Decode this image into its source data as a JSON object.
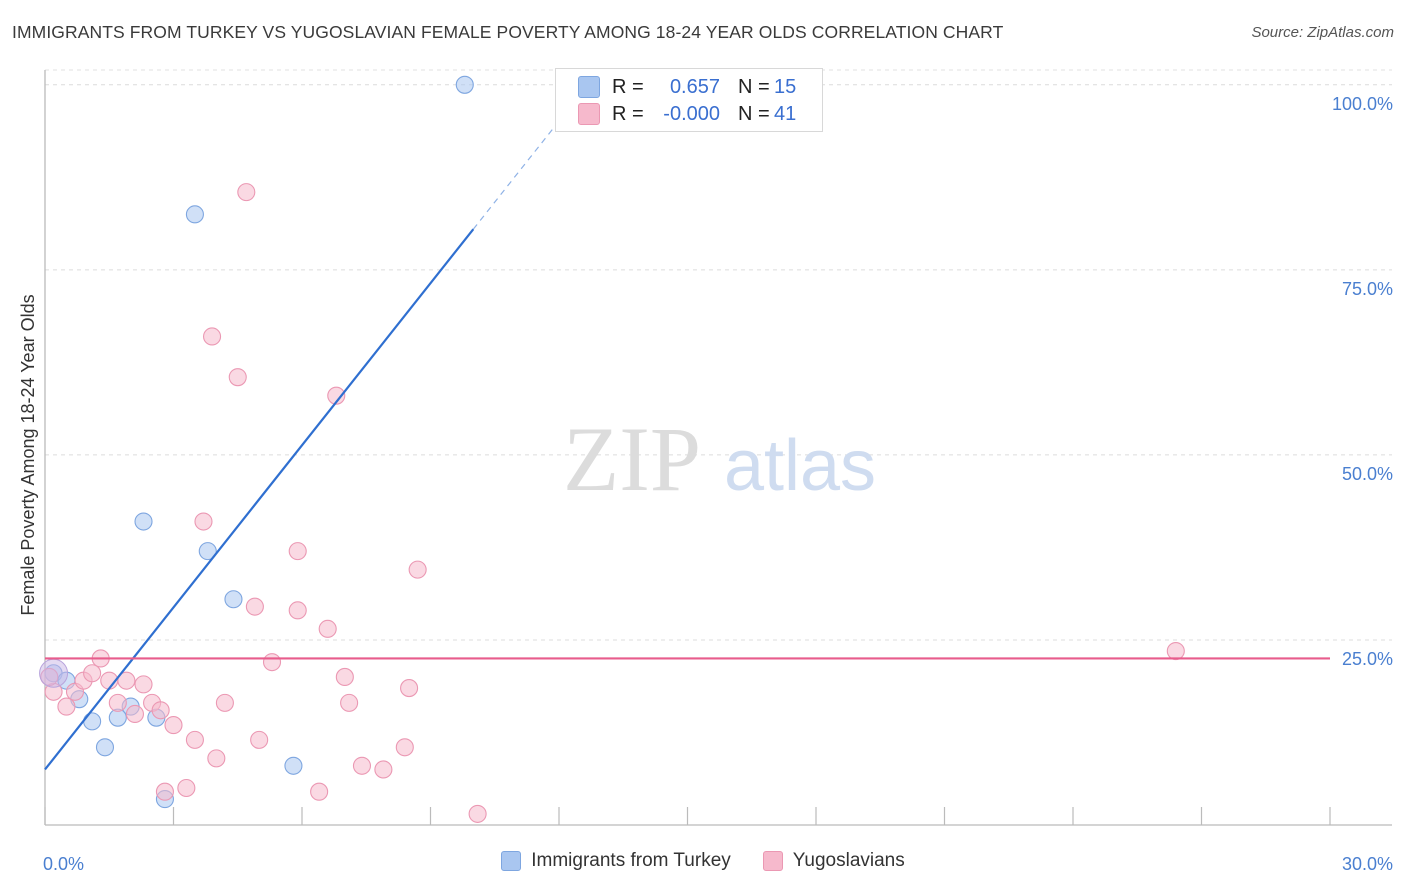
{
  "title": "IMMIGRANTS FROM TURKEY VS YUGOSLAVIAN FEMALE POVERTY AMONG 18-24 YEAR OLDS CORRELATION CHART",
  "source": "Source: ZipAtlas.com",
  "watermark": {
    "zip": "ZIP",
    "atlas": "atlas"
  },
  "legend": {
    "r_label": "R =",
    "n_label": "N =",
    "series1": {
      "r": "0.657",
      "n": "15",
      "color": "#a9c6f0"
    },
    "series2": {
      "r": "-0.000",
      "n": "41",
      "color": "#f6b9cc"
    }
  },
  "bottom_legend": {
    "series1": "Immigrants from Turkey",
    "series2": "Yugoslavians"
  },
  "chart_data": {
    "type": "scatter",
    "title": "IMMIGRANTS FROM TURKEY VS YUGOSLAVIAN FEMALE POVERTY AMONG 18-24 YEAR OLDS CORRELATION CHART",
    "xlabel": "",
    "ylabel": "Female Poverty Among 18-24 Year Olds",
    "xlim": [
      0,
      30
    ],
    "ylim": [
      0,
      102
    ],
    "x_tick_labels": [
      "0.0%",
      "30.0%"
    ],
    "y_tick_labels": [
      "100.0%",
      "75.0%",
      "50.0%",
      "25.0%"
    ],
    "y_tick_values": [
      100,
      75,
      50,
      25
    ],
    "series": [
      {
        "name": "Immigrants from Turkey",
        "color": "#a9c6f0",
        "stroke": "#7ea6e0",
        "trend": {
          "x0": 0,
          "y0": 7.5,
          "x1": 10.0,
          "y1": 80.5,
          "dash_to_x": 12.5,
          "color": "#2f6fd0"
        },
        "points": [
          {
            "x": 0.2,
            "y": 20.5
          },
          {
            "x": 0.5,
            "y": 19.5
          },
          {
            "x": 0.8,
            "y": 17.0
          },
          {
            "x": 1.1,
            "y": 14.0
          },
          {
            "x": 1.4,
            "y": 10.5
          },
          {
            "x": 1.7,
            "y": 14.5
          },
          {
            "x": 2.0,
            "y": 16.0
          },
          {
            "x": 2.3,
            "y": 41.0
          },
          {
            "x": 2.6,
            "y": 14.5
          },
          {
            "x": 2.8,
            "y": 3.5
          },
          {
            "x": 3.5,
            "y": 82.5
          },
          {
            "x": 3.8,
            "y": 37.0
          },
          {
            "x": 4.4,
            "y": 30.5
          },
          {
            "x": 5.8,
            "y": 8.0
          },
          {
            "x": 9.8,
            "y": 100.0
          }
        ]
      },
      {
        "name": "Yugoslavians",
        "color": "#f6b9cc",
        "stroke": "#eb98b3",
        "trend": {
          "x0": 0,
          "y0": 22.5,
          "x1": 30,
          "y1": 22.5,
          "color": "#e85c8c"
        },
        "points": [
          {
            "x": 0.2,
            "y": 18.0
          },
          {
            "x": 0.5,
            "y": 16.0
          },
          {
            "x": 0.7,
            "y": 18.0
          },
          {
            "x": 0.9,
            "y": 19.5
          },
          {
            "x": 1.1,
            "y": 20.5
          },
          {
            "x": 1.3,
            "y": 22.5
          },
          {
            "x": 1.5,
            "y": 19.5
          },
          {
            "x": 1.7,
            "y": 16.5
          },
          {
            "x": 1.9,
            "y": 19.5
          },
          {
            "x": 2.1,
            "y": 15.0
          },
          {
            "x": 2.3,
            "y": 19.0
          },
          {
            "x": 2.5,
            "y": 16.5
          },
          {
            "x": 2.7,
            "y": 15.5
          },
          {
            "x": 2.8,
            "y": 4.5
          },
          {
            "x": 3.0,
            "y": 13.5
          },
          {
            "x": 3.3,
            "y": 5.0
          },
          {
            "x": 3.5,
            "y": 11.5
          },
          {
            "x": 3.7,
            "y": 41.0
          },
          {
            "x": 3.9,
            "y": 66.0
          },
          {
            "x": 4.0,
            "y": 9.0
          },
          {
            "x": 4.2,
            "y": 16.5
          },
          {
            "x": 4.5,
            "y": 60.5
          },
          {
            "x": 4.7,
            "y": 85.5
          },
          {
            "x": 4.9,
            "y": 29.5
          },
          {
            "x": 5.0,
            "y": 11.5
          },
          {
            "x": 5.3,
            "y": 22.0
          },
          {
            "x": 5.9,
            "y": 37.0
          },
          {
            "x": 5.9,
            "y": 29.0
          },
          {
            "x": 6.4,
            "y": 4.5
          },
          {
            "x": 6.6,
            "y": 26.5
          },
          {
            "x": 6.8,
            "y": 58.0
          },
          {
            "x": 7.0,
            "y": 20.0
          },
          {
            "x": 7.1,
            "y": 16.5
          },
          {
            "x": 7.4,
            "y": 8.0
          },
          {
            "x": 7.9,
            "y": 7.5
          },
          {
            "x": 8.4,
            "y": 10.5
          },
          {
            "x": 8.5,
            "y": 18.5
          },
          {
            "x": 8.7,
            "y": 34.5
          },
          {
            "x": 10.1,
            "y": 1.5
          },
          {
            "x": 26.4,
            "y": 23.5
          },
          {
            "x": 0.1,
            "y": 20.0
          }
        ]
      }
    ]
  }
}
